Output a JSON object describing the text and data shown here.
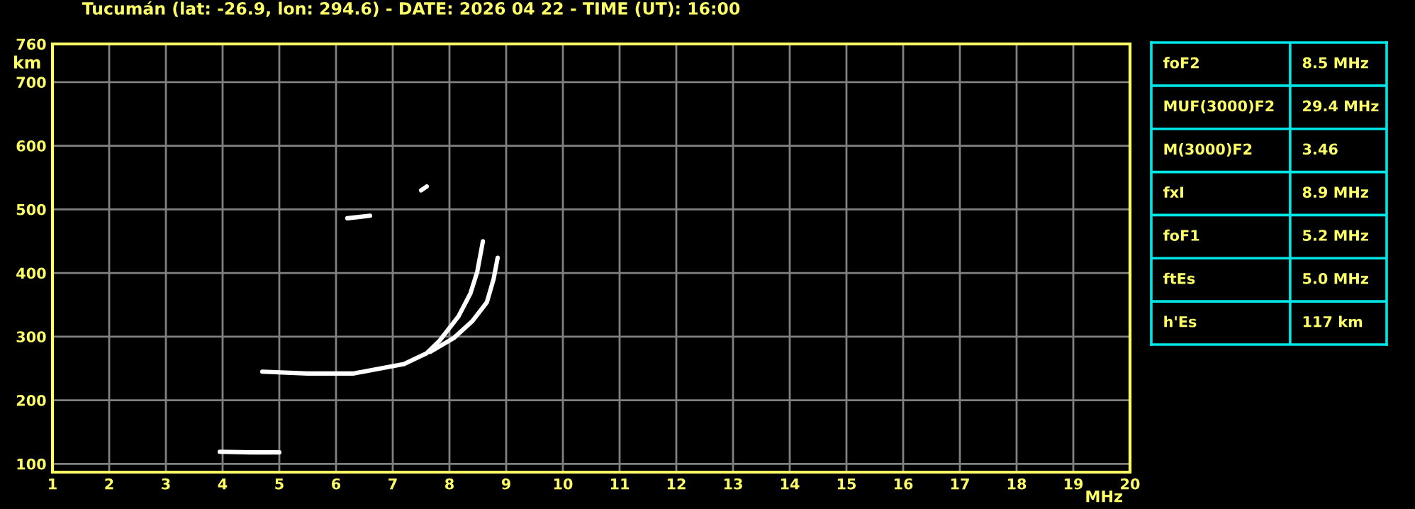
{
  "chart_data": [
    {
      "type": "line",
      "title": "Tucumán (lat: -26.9, lon: 294.6) - DATE: 2026 04 22 - TIME (UT): 16:00",
      "xlabel": "MHz",
      "ylabel": "km",
      "xlim": [
        1,
        20
      ],
      "xticks": [
        1,
        2,
        3,
        4,
        5,
        6,
        7,
        8,
        9,
        10,
        11,
        12,
        13,
        14,
        15,
        16,
        17,
        18,
        19,
        20
      ],
      "ylim": [
        87,
        760
      ],
      "yticks": [
        100,
        200,
        300,
        400,
        500,
        600,
        700,
        760
      ],
      "grid": true,
      "marker": "none",
      "line_style": "solid",
      "series": [
        {
          "color": "#ffffff",
          "x": [
            4.7,
            5.5,
            6.3,
            7.2,
            7.6,
            7.83,
            8.16,
            8.37,
            8.49,
            8.59
          ],
          "values": [
            245,
            242,
            242,
            257,
            274,
            294,
            332,
            368,
            402,
            450
          ]
        },
        {
          "color": "#ffffff",
          "x": [
            7.66,
            8.08,
            8.4,
            8.66,
            8.78,
            8.85
          ],
          "values": [
            276,
            298,
            324,
            354,
            391,
            424
          ]
        },
        {
          "color": "#ffffff",
          "x": [
            3.95,
            4.5,
            5.0
          ],
          "values": [
            119,
            118,
            118
          ]
        },
        {
          "color": "#ffffff",
          "x": [
            6.2,
            6.6
          ],
          "values": [
            486,
            490
          ]
        },
        {
          "color": "#ffffff",
          "x": [
            7.5,
            7.6
          ],
          "values": [
            530,
            536
          ]
        }
      ]
    },
    {
      "type": "other",
      "annotations": [
        "foF2",
        "8.5 MHz",
        "MUF(3000)F2",
        "29.4 MHz",
        "M(3000)F2",
        "3.46",
        "fxI",
        "8.9 MHz",
        "foF1",
        "5.2 MHz",
        "ftEs",
        "5.0 MHz",
        "h'Es",
        "117 km"
      ]
    }
  ]
}
